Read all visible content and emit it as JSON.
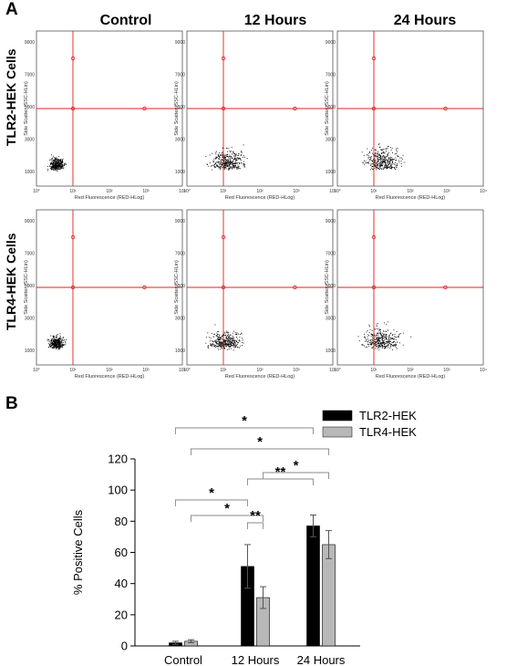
{
  "panels": {
    "a_letter": "A",
    "b_letter": "B"
  },
  "flow_cytometry": {
    "column_titles": [
      "Control",
      "12 Hours",
      "24 Hours"
    ],
    "row_titles": [
      "TLR2-HEK Cells",
      "TLR4-HEK Cells"
    ],
    "x_axis_label": "Red Fluorescence (RED-HLog)",
    "y_axis_label": "Side Scatter (SSC-HLin)",
    "x_ticks": [
      "10°",
      "10¹",
      "10²",
      "10³",
      "10⁴"
    ],
    "y_ticks": [
      "1000",
      "3000",
      "5000",
      "7000",
      "9000"
    ],
    "gate_color": "#e02020",
    "dot_color": "#000000",
    "plots": [
      {
        "row": 0,
        "col": 0,
        "spread": 0.8
      },
      {
        "row": 0,
        "col": 1,
        "spread": 1.4
      },
      {
        "row": 0,
        "col": 2,
        "spread": 1.6
      },
      {
        "row": 1,
        "col": 0,
        "spread": 0.8
      },
      {
        "row": 1,
        "col": 1,
        "spread": 1.3
      },
      {
        "row": 1,
        "col": 2,
        "spread": 1.6
      }
    ]
  },
  "chart_data": {
    "type": "bar",
    "categories": [
      "Control",
      "12 Hours",
      "24 Hours"
    ],
    "ylabel": "% Positive Cells",
    "xlabel": "",
    "ylim": [
      0,
      120
    ],
    "yticks": [
      0,
      20,
      40,
      60,
      80,
      100,
      120
    ],
    "series": [
      {
        "name": "TLR2-HEK",
        "color": "#000000",
        "values": [
          2,
          51,
          77
        ],
        "errors": [
          1,
          14,
          7
        ]
      },
      {
        "name": "TLR4-HEK",
        "color": "#b8b8b8",
        "values": [
          3,
          31,
          65
        ],
        "errors": [
          1,
          7,
          9
        ]
      }
    ],
    "legend_position": "top-right",
    "significance": [
      {
        "from": [
          0,
          0
        ],
        "to": [
          2,
          0
        ],
        "label": "*"
      },
      {
        "from": [
          0,
          1
        ],
        "to": [
          2,
          1
        ],
        "label": "*"
      },
      {
        "from": [
          1,
          1
        ],
        "to": [
          2,
          1
        ],
        "label": "*"
      },
      {
        "from": [
          1,
          0
        ],
        "to": [
          2,
          0
        ],
        "label": "**"
      },
      {
        "from": [
          0,
          0
        ],
        "to": [
          1,
          0
        ],
        "label": "*"
      },
      {
        "from": [
          0,
          1
        ],
        "to": [
          1,
          1
        ],
        "label": "*"
      },
      {
        "from": [
          1,
          0
        ],
        "to": [
          1,
          1
        ],
        "label": "**"
      }
    ]
  }
}
